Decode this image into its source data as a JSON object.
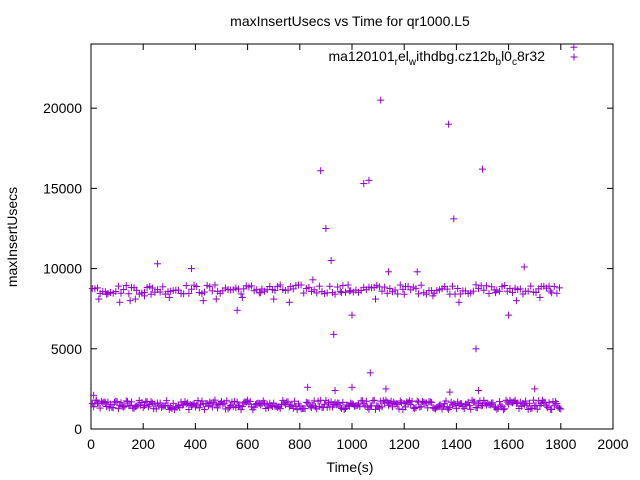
{
  "chart_data": {
    "type": "scatter",
    "title": "maxInsertUsecs vs Time for qr1000.L5",
    "xlabel": "Time(s)",
    "ylabel": "maxInsertUsecs",
    "xlim": [
      0,
      2000
    ],
    "ylim": [
      0,
      24000
    ],
    "x_ticks": [
      0,
      200,
      400,
      600,
      800,
      1000,
      1200,
      1400,
      1600,
      1800,
      2000
    ],
    "y_ticks": [
      0,
      5000,
      10000,
      15000,
      20000
    ],
    "grid": false,
    "legend_position": "top-right",
    "marker": "+",
    "color": "#9400d3",
    "series": [
      {
        "name": "ma120101_rel_withdbg.cz12b_bl0_c8r32",
        "name_parts": [
          {
            "text": "ma120101",
            "sub": false
          },
          {
            "text": "r",
            "sub": true
          },
          {
            "text": "el",
            "sub": false
          },
          {
            "text": "w",
            "sub": true
          },
          {
            "text": "ithdbg.cz12b",
            "sub": false
          },
          {
            "text": "b",
            "sub": true
          },
          {
            "text": "l0",
            "sub": false
          },
          {
            "text": "c",
            "sub": true
          },
          {
            "text": "8r32",
            "sub": false
          }
        ],
        "bands": [
          {
            "x_start": 5,
            "x_end": 1800,
            "x_step": 5,
            "y_center": 1500,
            "y_spread": 300
          },
          {
            "x_start": 5,
            "x_end": 1800,
            "x_step": 10,
            "y_center": 8700,
            "y_spread": 300
          }
        ],
        "points": [
          [
            10,
            2100
          ],
          [
            20,
            1800
          ],
          [
            30,
            8100
          ],
          [
            60,
            8400
          ],
          [
            110,
            7900
          ],
          [
            150,
            8000
          ],
          [
            170,
            8100
          ],
          [
            205,
            8300
          ],
          [
            230,
            8400
          ],
          [
            255,
            10300
          ],
          [
            300,
            8200
          ],
          [
            385,
            10000
          ],
          [
            430,
            8000
          ],
          [
            480,
            8100
          ],
          [
            560,
            7400
          ],
          [
            580,
            8200
          ],
          [
            650,
            8500
          ],
          [
            700,
            8100
          ],
          [
            760,
            7900
          ],
          [
            830,
            2600
          ],
          [
            850,
            9300
          ],
          [
            880,
            16100
          ],
          [
            900,
            12500
          ],
          [
            920,
            10500
          ],
          [
            930,
            5900
          ],
          [
            935,
            2400
          ],
          [
            960,
            8500
          ],
          [
            990,
            8600
          ],
          [
            1000,
            7100
          ],
          [
            1000,
            2600
          ],
          [
            1045,
            15300
          ],
          [
            1065,
            15500
          ],
          [
            1070,
            3500
          ],
          [
            1090,
            8100
          ],
          [
            1110,
            20500
          ],
          [
            1130,
            2500
          ],
          [
            1140,
            9800
          ],
          [
            1200,
            8400
          ],
          [
            1250,
            9800
          ],
          [
            1310,
            8300
          ],
          [
            1370,
            19000
          ],
          [
            1375,
            2300
          ],
          [
            1390,
            13100
          ],
          [
            1410,
            7900
          ],
          [
            1475,
            5000
          ],
          [
            1485,
            2400
          ],
          [
            1500,
            16200
          ],
          [
            1550,
            8500
          ],
          [
            1600,
            7100
          ],
          [
            1630,
            8000
          ],
          [
            1660,
            10100
          ],
          [
            1700,
            2500
          ],
          [
            1720,
            8200
          ],
          [
            1760,
            8600
          ],
          [
            1850,
            23800
          ]
        ]
      }
    ]
  }
}
